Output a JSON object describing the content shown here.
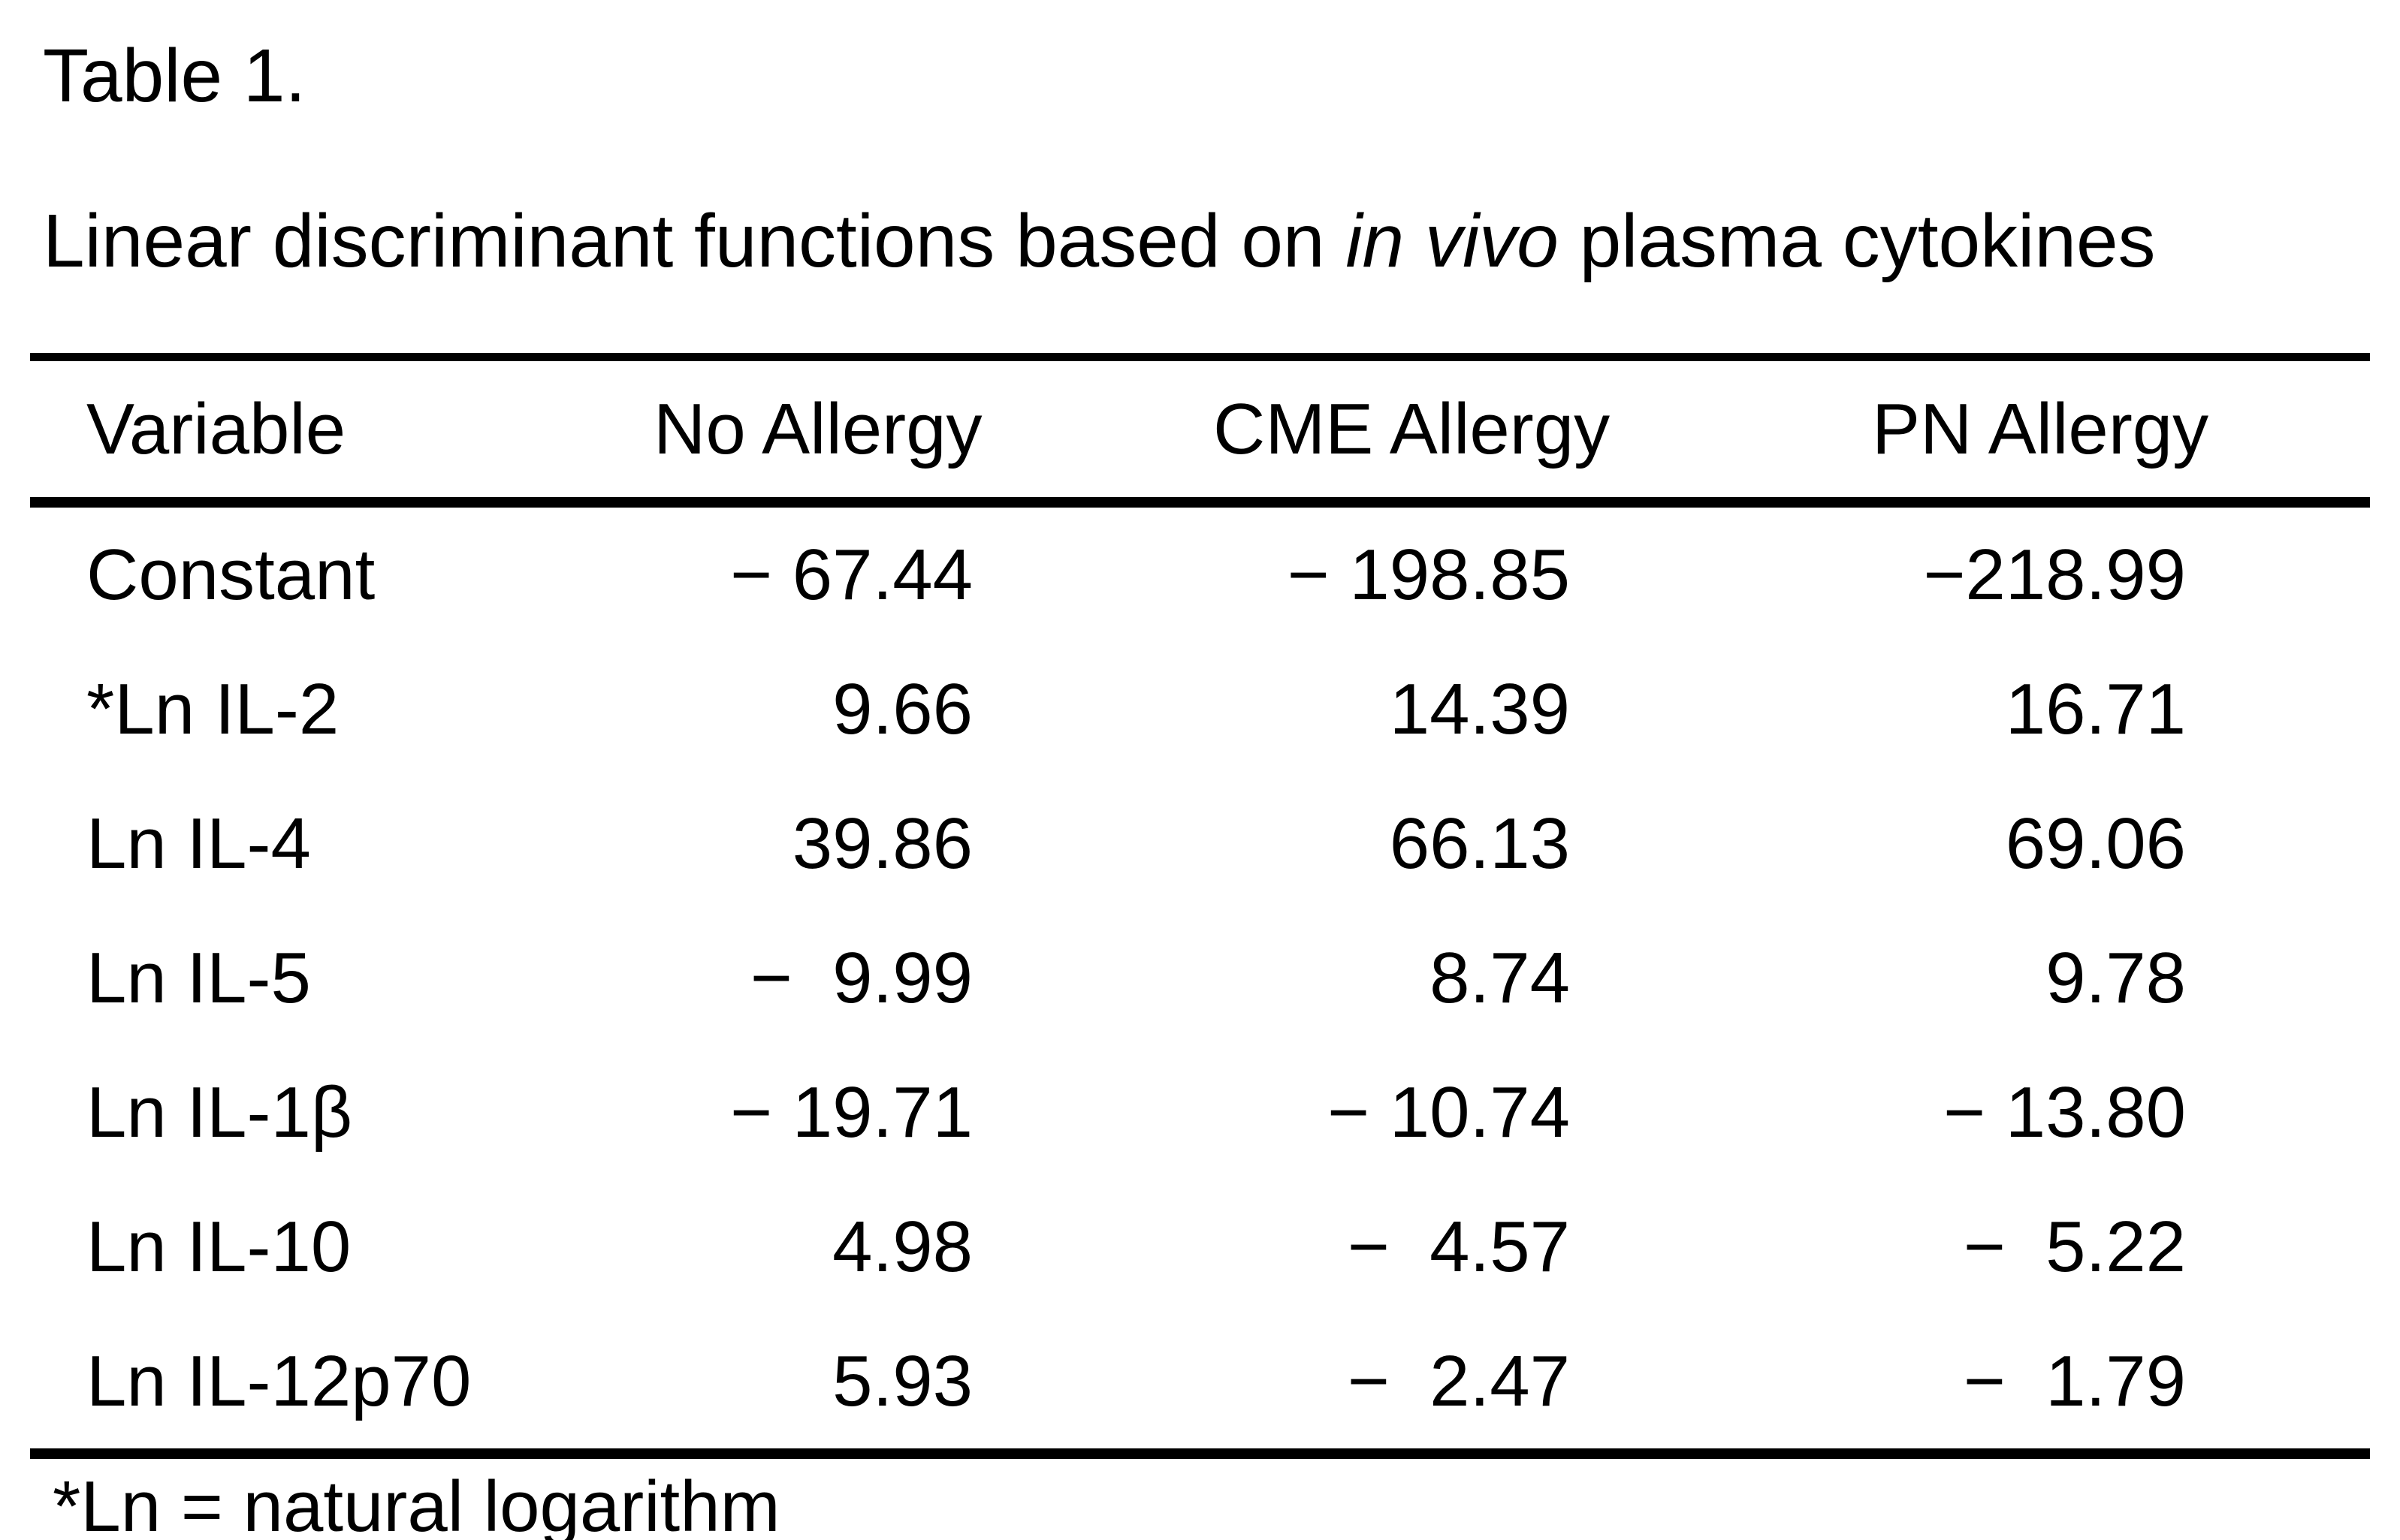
{
  "title": "Table 1.",
  "subtitle": {
    "prefix": "Linear discriminant functions based on ",
    "italic": "in vivo",
    "suffix": " plasma cytokines"
  },
  "table": {
    "headers": [
      "Variable",
      "No Allergy",
      "CME Allergy",
      "PN Allergy"
    ],
    "rows": [
      {
        "label": "Constant",
        "values": [
          "− 67.44",
          "− 198.85",
          "−218.99"
        ]
      },
      {
        "label": "*Ln IL-2",
        "values": [
          "9.66",
          "14.39",
          "16.71"
        ]
      },
      {
        "label": "Ln IL-4",
        "values": [
          "39.86",
          "66.13",
          "69.06"
        ]
      },
      {
        "label": "Ln IL-5",
        "values": [
          "−  9.99",
          "8.74",
          "9.78"
        ]
      },
      {
        "label": "Ln IL-1β",
        "values": [
          "− 19.71",
          "− 10.74",
          "− 13.80"
        ]
      },
      {
        "label": "Ln IL-10",
        "values": [
          "4.98",
          "−  4.57",
          "−  5.22"
        ]
      },
      {
        "label": "Ln IL-12p70",
        "values": [
          "5.93",
          "−  2.47",
          "−  1.79"
        ]
      }
    ]
  },
  "footnote": "*Ln = natural logarithm",
  "colors": {
    "text": "#000000",
    "background": "#ffffff",
    "rule": "#000000"
  }
}
